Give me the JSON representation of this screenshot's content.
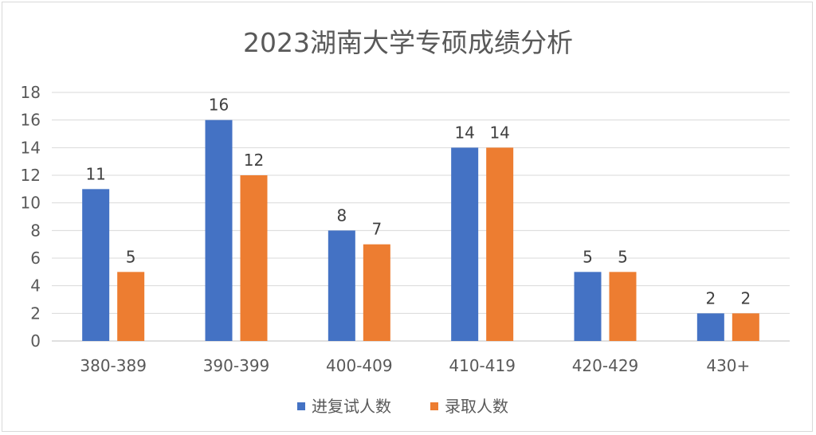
{
  "chart_data": {
    "type": "bar",
    "title": "2023湖南大学专硕成绩分析",
    "categories": [
      "380-389",
      "390-399",
      "400-409",
      "410-419",
      "420-429",
      "430+"
    ],
    "series": [
      {
        "name": "进复试人数",
        "values": [
          11,
          16,
          8,
          14,
          5,
          2
        ],
        "color": "#4472c4"
      },
      {
        "name": "录取人数",
        "values": [
          5,
          12,
          7,
          14,
          5,
          2
        ],
        "color": "#ed7d31"
      }
    ],
    "ylim": [
      0,
      18
    ],
    "yticks": [
      0,
      2,
      4,
      6,
      8,
      10,
      12,
      14,
      16,
      18
    ],
    "grid": true,
    "legend": "bottom"
  }
}
